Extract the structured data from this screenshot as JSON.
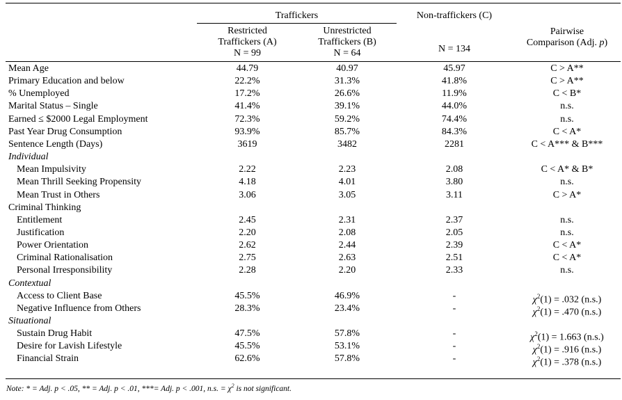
{
  "header": {
    "group_traffickers": "Traffickers",
    "group_non": "Non-traffickers (C)",
    "col_a": [
      "Restricted",
      "Traffickers (A)",
      "N = 99"
    ],
    "col_b": [
      "Unrestricted",
      "Traffickers (B)",
      "N = 64"
    ],
    "col_c_n": "N = 134",
    "col_p": [
      "Pairwise",
      "Comparison (Adj. p)"
    ]
  },
  "rows": [
    {
      "label": "Mean Age",
      "a": "44.79",
      "b": "40.97",
      "c": "45.97",
      "p": "C > A**",
      "indent": false,
      "section": false
    },
    {
      "label": "Primary Education and below",
      "a": "22.2%",
      "b": "31.3%",
      "c": "41.8%",
      "p": "C > A**",
      "indent": false,
      "section": false
    },
    {
      "label": "%  Unemployed",
      "a": "17.2%",
      "b": "26.6%",
      "c": "11.9%",
      "p": "C < B*",
      "indent": false,
      "section": false
    },
    {
      "label": "Marital Status – Single",
      "a": "41.4%",
      "b": "39.1%",
      "c": "44.0%",
      "p": "n.s.",
      "indent": false,
      "section": false
    },
    {
      "label": "Earned ≤ $2000 Legal Employment",
      "a": "72.3%",
      "b": "59.2%",
      "c": "74.4%",
      "p": "n.s.",
      "indent": false,
      "section": false
    },
    {
      "label": " Past Year Drug Consumption",
      "a": "93.9%",
      "b": "85.7%",
      "c": "84.3%",
      "p": "C < A*",
      "indent": false,
      "section": false
    },
    {
      "label": "Sentence Length (Days)",
      "a": "3619",
      "b": "3482",
      "c": "2281",
      "p": "C < A*** & B***",
      "indent": false,
      "section": false
    },
    {
      "label": "Individual",
      "a": "",
      "b": "",
      "c": "",
      "p": "",
      "indent": false,
      "section": true,
      "italic": true
    },
    {
      "label": "Mean Impulsivity",
      "a": "2.22",
      "b": "2.23",
      "c": "2.08",
      "p": "C < A* & B*",
      "indent": true,
      "section": false
    },
    {
      "label": "Mean Thrill Seeking Propensity",
      "a": "4.18",
      "b": "4.01",
      "c": "3.80",
      "p": "n.s.",
      "indent": true,
      "section": false
    },
    {
      "label": "Mean Trust in Others",
      "a": "3.06",
      "b": "3.05",
      "c": "3.11",
      "p": "C > A*",
      "indent": true,
      "section": false
    },
    {
      "label": "Criminal Thinking",
      "a": "",
      "b": "",
      "c": "",
      "p": "",
      "indent": false,
      "section": true,
      "italic": false
    },
    {
      "label": "Entitlement",
      "a": "2.45",
      "b": "2.31",
      "c": "2.37",
      "p": "n.s.",
      "indent": true,
      "section": false
    },
    {
      "label": "Justification",
      "a": "2.20",
      "b": "2.08",
      "c": "2.05",
      "p": "n.s.",
      "indent": true,
      "section": false
    },
    {
      "label": "Power Orientation",
      "a": "2.62",
      "b": "2.44",
      "c": "2.39",
      "p": "C < A*",
      "indent": true,
      "section": false
    },
    {
      "label": "Criminal Rationalisation",
      "a": "2.75",
      "b": "2.63",
      "c": "2.51",
      "p": "C < A*",
      "indent": true,
      "section": false
    },
    {
      "label": "Personal Irresponsibility",
      "a": "2.28",
      "b": "2.20",
      "c": "2.33",
      "p": "n.s.",
      "indent": true,
      "section": false
    },
    {
      "label": "Contextual",
      "a": "",
      "b": "",
      "c": "",
      "p": "",
      "indent": false,
      "section": true,
      "italic": true
    },
    {
      "label": "Access to Client Base",
      "a": "45.5%",
      "b": "46.9%",
      "c": "-",
      "p": "χ2(1) = .032 (n.s.)",
      "indent": true,
      "section": false
    },
    {
      "label": "Negative Influence from Others",
      "a": "28.3%",
      "b": "23.4%",
      "c": "-",
      "p": "χ2(1) = .470 (n.s.)",
      "indent": true,
      "section": false
    },
    {
      "label": "Situational",
      "a": "",
      "b": "",
      "c": "",
      "p": "",
      "indent": false,
      "section": true,
      "italic": true
    },
    {
      "label": "Sustain Drug Habit",
      "a": "47.5%",
      "b": "57.8%",
      "c": "-",
      "p": "χ2(1) = 1.663 (n.s.)",
      "indent": true,
      "section": false
    },
    {
      "label": "Desire for Lavish Lifestyle",
      "a": "45.5%",
      "b": "53.1%",
      "c": "-",
      "p": "χ2(1) = .916 (n.s.)",
      "indent": true,
      "section": false
    },
    {
      "label": "Financial Strain",
      "a": "62.6%",
      "b": "57.8%",
      "c": "-",
      "p": "χ2(1) = .378 (n.s.)",
      "indent": true,
      "section": false
    }
  ],
  "note": "Note: * = Adj. p < .05, ** = Adj. p < .01, ***= Adj. p < .001, n.s. = χ2 is not significant."
}
